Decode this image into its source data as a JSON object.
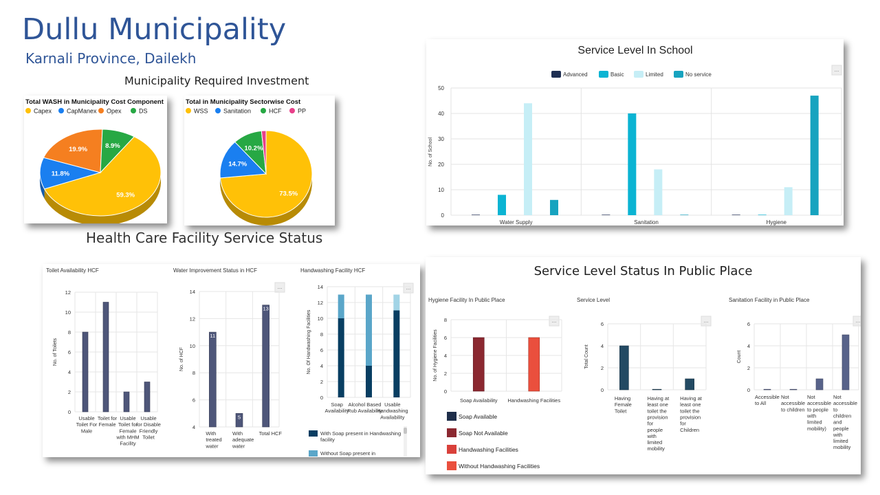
{
  "header": {
    "title": "Dullu Municipality",
    "subtitle": "Karnali Province, Dailekh",
    "investment_heading": "Municipality Required Investment",
    "hcf_heading": "Health Care Facility Service Status"
  },
  "more_icon_glyph": "...",
  "chart_data": [
    {
      "id": "wash_cost",
      "type": "pie",
      "title": "Total WASH in Municipality Cost Component",
      "labels": [
        "Capex",
        "CapManex",
        "Opex",
        "DS"
      ],
      "values": [
        59.3,
        11.8,
        19.9,
        8.9
      ],
      "value_labels": [
        "59.3%",
        "11.8%",
        "19.9%",
        "8.9%"
      ],
      "colors": [
        "#ffc107",
        "#1a7ff0",
        "#f57f20",
        "#27a844"
      ],
      "legend": "top"
    },
    {
      "id": "sector_cost",
      "type": "pie",
      "title": "Total in Municipality Sectorwise Cost",
      "labels": [
        "WSS",
        "Sanitation",
        "HCF",
        "PP"
      ],
      "values": [
        73.5,
        14.7,
        10.2,
        1.6
      ],
      "value_labels": [
        "73.5%",
        "14.7%",
        "10.2%",
        ""
      ],
      "colors": [
        "#ffc107",
        "#1a7ff0",
        "#27a844",
        "#e8408a"
      ],
      "legend": "top"
    },
    {
      "id": "school",
      "type": "bar",
      "title": "Service Level In School",
      "categories": [
        "Water Supply",
        "Sanitation",
        "Hygiene"
      ],
      "series": [
        {
          "name": "Advanced",
          "values": [
            0,
            0,
            0
          ],
          "color": "#1e2e52"
        },
        {
          "name": "Basic",
          "values": [
            8,
            40,
            0
          ],
          "color": "#0bb4d3"
        },
        {
          "name": "Limited",
          "values": [
            44,
            18,
            11
          ],
          "color": "#c6eef6"
        },
        {
          "name": "No service",
          "values": [
            6,
            0,
            47
          ],
          "color": "#17a3bf"
        }
      ],
      "ylabel": "No. of School",
      "ylim": [
        0,
        50
      ],
      "yticks": [
        0,
        10,
        20,
        30,
        40,
        50
      ],
      "legend": "top"
    },
    {
      "id": "toilet_hcf",
      "type": "bar",
      "title": "Toilet Availability HCF",
      "categories": [
        "Usable Toilet For Male",
        "Toilet for Female",
        "Usable Toilet for Female with MHM Facility",
        "Usable for Disable Friendly Toilet"
      ],
      "category_lines": [
        [
          "Usable",
          "Toilet For",
          "Male"
        ],
        [
          "Toilet for",
          "Female"
        ],
        [
          "Usable",
          "Toilet for",
          "Female",
          "with MHM",
          "Facility"
        ],
        [
          "Usable",
          "for Disable",
          "Friendly",
          "Toilet"
        ]
      ],
      "values": [
        8,
        11,
        2,
        3
      ],
      "color": "#4e5679",
      "ylabel": "No. of Toilets",
      "ylim": [
        0,
        12
      ],
      "yticks": [
        0,
        2,
        4,
        6,
        8,
        10,
        12
      ]
    },
    {
      "id": "water_hcf",
      "type": "bar",
      "title": "Water Improvement Status in HCF",
      "categories": [
        "With treated water",
        "With adequate water",
        "Total HCF"
      ],
      "category_lines": [
        [
          "With",
          "treated",
          "water"
        ],
        [
          "With",
          "adequate",
          "water"
        ],
        [
          "Total HCF"
        ]
      ],
      "values": [
        11,
        5,
        13
      ],
      "data_labels": [
        "11",
        "5",
        "13"
      ],
      "color": "#4e5679",
      "ylabel": "No. of HCF",
      "ylim": [
        4,
        14
      ],
      "yticks": [
        4,
        6,
        8,
        10,
        12,
        14
      ]
    },
    {
      "id": "handwash_hcf",
      "type": "bar",
      "stacked": true,
      "title": "Handwashing Facility HCF",
      "categories": [
        "Soap Availability",
        "Alcohol Based Rub Availability",
        "Usable Handwashing Availability"
      ],
      "category_lines": [
        [
          "Soap",
          "Availability"
        ],
        [
          "Alcohol Based",
          "Rub Availability"
        ],
        [
          "Usable",
          "Handwashing",
          "Availability"
        ]
      ],
      "series": [
        {
          "name": "With Soap present in Handwashing facility",
          "values": [
            10,
            4,
            11
          ],
          "color": "#083e62"
        },
        {
          "name": "Without Soap present in Handwashing facility",
          "values": [
            3,
            9,
            2
          ],
          "color": "#5aa6c9",
          "color_alt": "#a2d4e6"
        }
      ],
      "legend_lines": [
        [
          "With Soap present in Handwashing",
          "facility"
        ],
        [
          "Without Soap present in"
        ]
      ],
      "ylabel": "No. Of Handwashing Facilities",
      "ylim": [
        0,
        14
      ],
      "yticks": [
        0,
        2,
        4,
        6,
        8,
        10,
        12,
        14
      ]
    },
    {
      "id": "hygiene_pp",
      "type": "bar",
      "title": "Hygiene Facility In Public Place",
      "categories": [
        "Soap Availability",
        "Handwashing Facilities"
      ],
      "values": [
        6,
        6
      ],
      "colors": [
        "#8b2830",
        "#ea4f3d"
      ],
      "ylabel": "No. of Hygiene Facilities",
      "ylim": [
        0,
        8
      ],
      "yticks": [
        0,
        2,
        4,
        6,
        8
      ],
      "legend_entries": [
        {
          "name": "Soap Available",
          "color": "#1e2e4a"
        },
        {
          "name": "Soap Not Available",
          "color": "#8b2830"
        },
        {
          "name": "Handwashing Facilities",
          "color": "#d9403a"
        },
        {
          "name": "Without Handwashing Facilities",
          "color": "#ea4f3d"
        }
      ]
    },
    {
      "id": "service_level_pp",
      "type": "bar",
      "title": "Service Level",
      "categories": [
        "Having Female Toilet",
        "Having at least one toilet the provision for people with limited mobility",
        "Having at least one toilet the provision for Children"
      ],
      "category_lines": [
        [
          "Having",
          "Female",
          "Toilet"
        ],
        [
          "Having at",
          "least one",
          "toilet the",
          "provision",
          "for",
          "people",
          "with",
          "limited",
          "mobility"
        ],
        [
          "Having at",
          "least one",
          "toilet the",
          "provision",
          "for",
          "Children"
        ]
      ],
      "values": [
        4,
        0,
        1
      ],
      "color": "#234a63",
      "ylabel": "Total Count",
      "ylim": [
        0,
        6
      ],
      "yticks": [
        0,
        2,
        4,
        6
      ]
    },
    {
      "id": "sanitation_pp",
      "type": "bar",
      "title": "Sanitation Facility in Public Place",
      "categories": [
        "Accessible to All",
        "Not accessible to children",
        "Not accessible to people with limited mobility",
        "Not accessible to children and people with limited mobility"
      ],
      "category_lines": [
        [
          "Accessible",
          "to All"
        ],
        [
          "Not",
          "accessible",
          "to children"
        ],
        [
          "Not",
          "accessible",
          "to people",
          "with",
          "limited",
          "mobility)"
        ],
        [
          "Not",
          "accessible",
          "to",
          "children",
          "and",
          "people",
          "with",
          "limited",
          "mobility"
        ]
      ],
      "values": [
        0,
        0,
        1,
        5
      ],
      "color": "#58638a",
      "ylabel": "Count",
      "ylim": [
        0,
        6
      ],
      "yticks": [
        0,
        2,
        4,
        6
      ]
    }
  ],
  "public_place_title": "Service Level Status In Public Place"
}
